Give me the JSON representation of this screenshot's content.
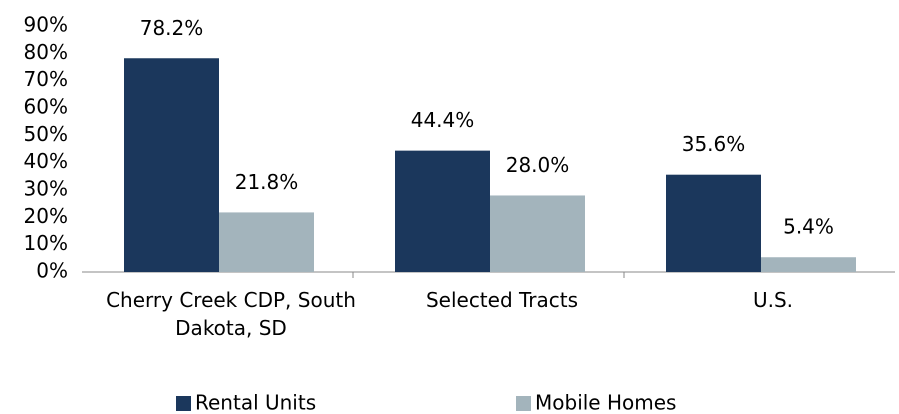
{
  "chart_data": {
    "type": "bar",
    "categories": [
      "Cherry Creek CDP, South Dakota, SD",
      "Selected Tracts",
      "U.S."
    ],
    "series": [
      {
        "name": "Rental Units",
        "color": "#1b375c",
        "values": [
          78.2,
          44.4,
          35.6
        ],
        "value_labels": [
          "78.2%",
          "44.4%",
          "35.6%"
        ]
      },
      {
        "name": "Mobile Homes",
        "color": "#a3b4bc",
        "values": [
          21.8,
          28.0,
          5.4
        ],
        "value_labels": [
          "21.8%",
          "28.0%",
          "5.4%"
        ]
      }
    ],
    "ylim": [
      0,
      90
    ],
    "yticks": [
      {
        "value": 0,
        "label": "0%"
      },
      {
        "value": 10,
        "label": "10%"
      },
      {
        "value": 20,
        "label": "20%"
      },
      {
        "value": 30,
        "label": "30%"
      },
      {
        "value": 40,
        "label": "40%"
      },
      {
        "value": 50,
        "label": "50%"
      },
      {
        "value": 60,
        "label": "60%"
      },
      {
        "value": 70,
        "label": "70%"
      },
      {
        "value": 80,
        "label": "80%"
      },
      {
        "value": 90,
        "label": "90%"
      }
    ],
    "grid": false,
    "legend": "bottom"
  }
}
